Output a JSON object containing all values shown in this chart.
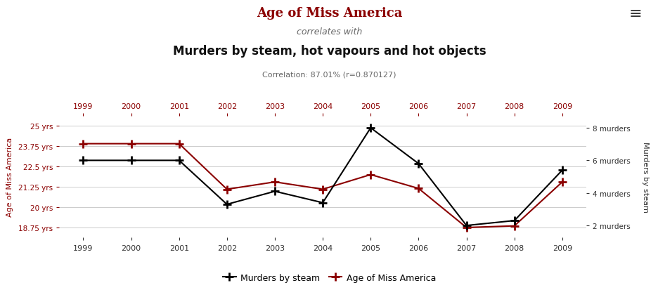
{
  "years": [
    1999,
    2000,
    2001,
    2002,
    2003,
    2004,
    2005,
    2006,
    2007,
    2008,
    2009
  ],
  "miss_america_age": [
    23.9,
    23.9,
    23.9,
    21.1,
    21.55,
    21.1,
    22.0,
    21.15,
    18.75,
    18.85,
    21.55
  ],
  "murders_by_steam": [
    6,
    6,
    6,
    3.3,
    4.1,
    3.4,
    8.0,
    5.8,
    2.0,
    2.3,
    5.4
  ],
  "title1": "Age of Miss America",
  "title2": "correlates with",
  "title3": "Murders by steam, hot vapours and hot objects",
  "correlation_text": "Correlation: 87.01% (r=0.870127)",
  "ylabel_left": "Age of Miss America",
  "ylabel_right": "Murders by steam",
  "color_miss_america": "#8B0000",
  "color_murders": "#000000",
  "background_color": "#ffffff",
  "ylim_left": [
    18.125,
    25.625
  ],
  "ylim_right": [
    1.25,
    8.75
  ],
  "yticks_left": [
    18.75,
    20.0,
    21.25,
    22.5,
    23.75,
    25.0
  ],
  "yticks_right": [
    2,
    4,
    6,
    8
  ],
  "ytick_labels_left": [
    "18.75 yrs",
    "20 yrs",
    "21.25 yrs",
    "22.5 yrs",
    "23.75 yrs",
    "25 yrs"
  ],
  "ytick_labels_right": [
    "2 murders",
    "4 murders",
    "6 murders",
    "8 murders"
  ],
  "grid_color": "#cccccc",
  "legend_labels": [
    "Murders by steam",
    "Age of Miss America"
  ]
}
